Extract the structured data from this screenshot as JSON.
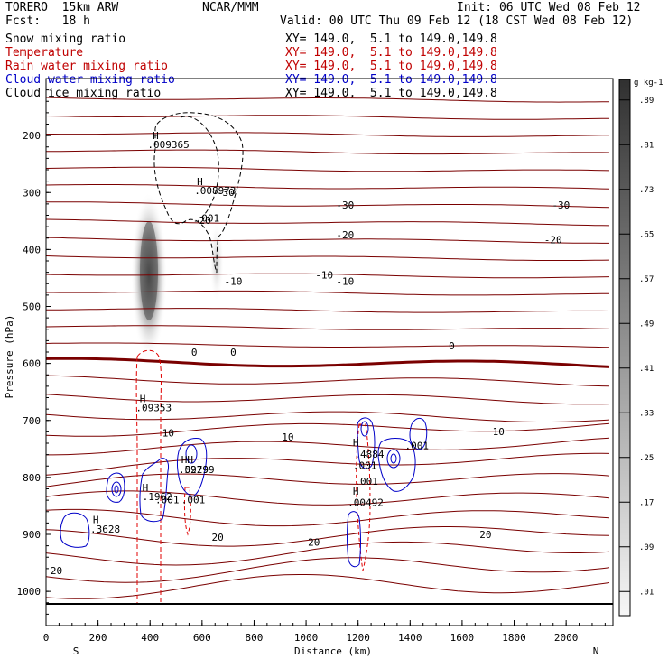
{
  "header": {
    "model": "TORERO  15km ARW",
    "org": "NCAR/MMM",
    "init": "Init: 06 UTC Wed 08 Feb 12",
    "fcst": "Fcst:   18 h",
    "valid": "Valid: 00 UTC Thu 09 Feb 12 (18 CST Wed 08 Feb 12)"
  },
  "fields": [
    {
      "name": "Snow mixing ratio",
      "xy": "XY= 149.0,  5.1 to 149.0,149.8",
      "color": "#000000"
    },
    {
      "name": "Temperature",
      "xy": "XY= 149.0,  5.1 to 149.0,149.8",
      "color": "#c00000"
    },
    {
      "name": "Rain water mixing ratio",
      "xy": "XY= 149.0,  5.1 to 149.0,149.8",
      "color": "#c00000"
    },
    {
      "name": "Cloud water mixing ratio",
      "xy": "XY= 149.0,  5.1 to 149.0,149.8",
      "color": "#0000c8"
    },
    {
      "name": "Cloud ice mixing ratio",
      "xy": "XY= 149.0,  5.1 to 149.0,149.8",
      "color": "#000000"
    }
  ],
  "chart_data": {
    "type": "cross-section",
    "xlabel": "Distance (km)",
    "ylabel": "Pressure (hPa)",
    "xlim": [
      0,
      2180
    ],
    "ylim": [
      1060,
      100
    ],
    "x_ticks": [
      0,
      200,
      400,
      600,
      800,
      1000,
      1200,
      1400,
      1600,
      1800,
      2000
    ],
    "y_ticks": [
      200,
      300,
      400,
      500,
      600,
      700,
      800,
      900,
      1000
    ],
    "x_endpoints": [
      "S",
      "N"
    ],
    "colorbar": {
      "units": "g kg-1",
      "labels": [
        ".01",
        ".09",
        ".17",
        ".25",
        ".33",
        ".41",
        ".49",
        ".57",
        ".65",
        ".73",
        ".81",
        ".89"
      ]
    },
    "temperature_labels": [
      {
        "text": "-30",
        "x": 1150,
        "p": 328
      },
      {
        "text": "-30",
        "x": 1980,
        "p": 328
      },
      {
        "text": "-30",
        "x": 690,
        "p": 306
      },
      {
        "text": "-20",
        "x": 600,
        "p": 355
      },
      {
        "text": "-20",
        "x": 1150,
        "p": 380
      },
      {
        "text": "-20",
        "x": 1950,
        "p": 389
      },
      {
        "text": "-10",
        "x": 720,
        "p": 462
      },
      {
        "text": "-10",
        "x": 1070,
        "p": 451
      },
      {
        "text": "-10",
        "x": 1150,
        "p": 462
      },
      {
        "text": "0",
        "x": 570,
        "p": 586
      },
      {
        "text": "0",
        "x": 720,
        "p": 586
      },
      {
        "text": "0",
        "x": 1560,
        "p": 575
      },
      {
        "text": "10",
        "x": 470,
        "p": 728
      },
      {
        "text": "10",
        "x": 930,
        "p": 735
      },
      {
        "text": "10",
        "x": 1740,
        "p": 726
      },
      {
        "text": "20",
        "x": 660,
        "p": 911
      },
      {
        "text": "20",
        "x": 1030,
        "p": 920
      },
      {
        "text": "20",
        "x": 1690,
        "p": 906
      },
      {
        "text": "20",
        "x": 40,
        "p": 970
      }
    ],
    "maxima_labels": [
      {
        "text": "H",
        "x": 410,
        "p": 206,
        "color": "#000000"
      },
      {
        "text": ".009365",
        "x": 390,
        "p": 222,
        "color": "#000000"
      },
      {
        "text": "H",
        "x": 580,
        "p": 287,
        "color": "#000000"
      },
      {
        "text": ".008973",
        "x": 570,
        "p": 303,
        "color": "#000000"
      },
      {
        "text": ".001",
        "x": 575,
        "p": 351,
        "color": "#000000"
      },
      {
        "text": "H",
        "x": 360,
        "p": 668,
        "color": "#c00000"
      },
      {
        "text": ".09353",
        "x": 345,
        "p": 684,
        "color": "#c00000"
      },
      {
        "text": "HH",
        "x": 520,
        "p": 775,
        "color": "#c00000"
      },
      {
        "text": ".09299",
        "x": 510,
        "p": 792,
        "color": "#c00000"
      },
      {
        "text": ".001",
        "x": 520,
        "p": 845,
        "color": "#c00000"
      },
      {
        "text": ".001",
        "x": 420,
        "p": 845,
        "color": "#c00000"
      },
      {
        "text": "H",
        "x": 1180,
        "p": 745,
        "color": "#0000c8"
      },
      {
        "text": ".001",
        "x": 1180,
        "p": 785,
        "color": "#c00000"
      },
      {
        "text": "H",
        "x": 1180,
        "p": 830,
        "color": "#c00000"
      },
      {
        "text": ".00492",
        "x": 1160,
        "p": 850,
        "color": "#c00000"
      },
      {
        "text": ".4884",
        "x": 1185,
        "p": 765,
        "color": "#0000c8"
      },
      {
        "text": ".001",
        "x": 1185,
        "p": 813,
        "color": "#0000c8"
      },
      {
        "text": ".001",
        "x": 1380,
        "p": 750,
        "color": "#0000c8"
      },
      {
        "text": ".5279",
        "x": 510,
        "p": 792,
        "color": "#0000c8"
      },
      {
        "text": "H",
        "x": 370,
        "p": 824,
        "color": "#0000c8"
      },
      {
        "text": ".1962",
        "x": 370,
        "p": 840,
        "color": "#0000c8"
      },
      {
        "text": "H",
        "x": 180,
        "p": 880,
        "color": "#0000c8"
      },
      {
        "text": ".3628",
        "x": 170,
        "p": 897,
        "color": "#0000c8"
      }
    ]
  }
}
